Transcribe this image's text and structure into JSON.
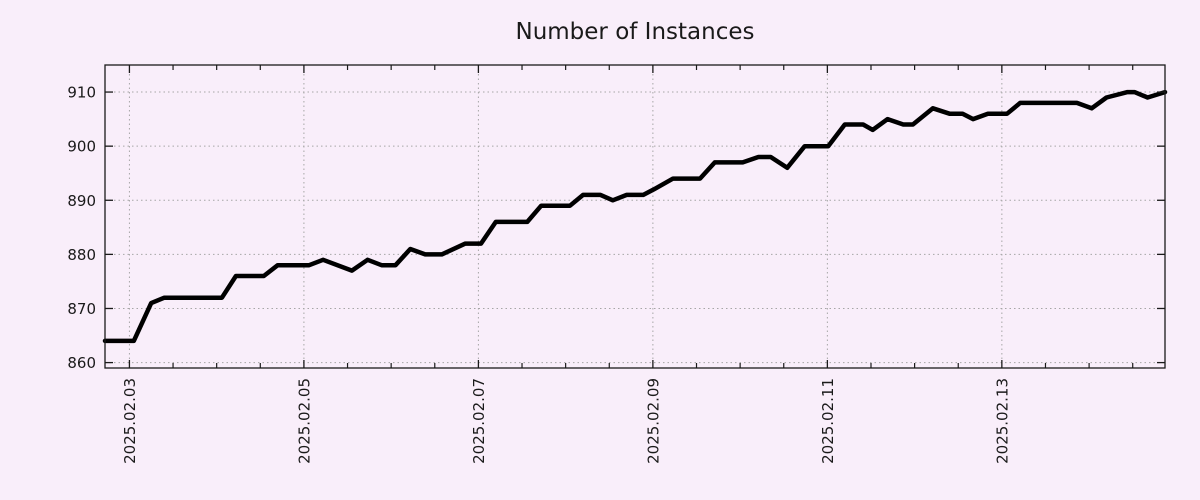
{
  "colors": {
    "background": "#f9eefa",
    "line": "#000000",
    "grid": "#a6a6a6",
    "axis": "#1a1a1a",
    "text": "#1a1a1a"
  },
  "chart_data": {
    "type": "line",
    "title": "Number of Instances",
    "xlabel": "",
    "ylabel": "",
    "grid": true,
    "legend": "none",
    "x_unit": "days since 2025-02-03 00:00",
    "xlim": [
      -0.28,
      11.87
    ],
    "ylim": [
      859,
      915
    ],
    "y_ticks": [
      860,
      870,
      880,
      890,
      900,
      910
    ],
    "x_ticks": [
      {
        "t": 0,
        "label": "2025.02.03"
      },
      {
        "t": 2,
        "label": "2025.02.05"
      },
      {
        "t": 4,
        "label": "2025.02.07"
      },
      {
        "t": 6,
        "label": "2025.02.09"
      },
      {
        "t": 8,
        "label": "2025.02.11"
      },
      {
        "t": 10,
        "label": "2025.02.13"
      }
    ],
    "x_minor_tick_interval": 0.5,
    "series": [
      {
        "name": "instances",
        "color": "#000000",
        "points": [
          [
            -0.28,
            864
          ],
          [
            0.05,
            864
          ],
          [
            0.25,
            871
          ],
          [
            0.4,
            872
          ],
          [
            1.06,
            872
          ],
          [
            1.22,
            876
          ],
          [
            1.54,
            876
          ],
          [
            1.7,
            878
          ],
          [
            2.06,
            878
          ],
          [
            2.22,
            879
          ],
          [
            2.55,
            877
          ],
          [
            2.73,
            879
          ],
          [
            2.89,
            878
          ],
          [
            3.05,
            878
          ],
          [
            3.22,
            881
          ],
          [
            3.39,
            880
          ],
          [
            3.58,
            880
          ],
          [
            3.85,
            882
          ],
          [
            4.03,
            882
          ],
          [
            4.2,
            886
          ],
          [
            4.56,
            886
          ],
          [
            4.72,
            889
          ],
          [
            5.05,
            889
          ],
          [
            5.2,
            891
          ],
          [
            5.4,
            891
          ],
          [
            5.54,
            890
          ],
          [
            5.7,
            891
          ],
          [
            5.89,
            891
          ],
          [
            6.01,
            892
          ],
          [
            6.23,
            894
          ],
          [
            6.54,
            894
          ],
          [
            6.71,
            897
          ],
          [
            7.03,
            897
          ],
          [
            7.21,
            898
          ],
          [
            7.35,
            898
          ],
          [
            7.54,
            896
          ],
          [
            7.74,
            900
          ],
          [
            8.01,
            900
          ],
          [
            8.2,
            904
          ],
          [
            8.41,
            904
          ],
          [
            8.52,
            903
          ],
          [
            8.69,
            905
          ],
          [
            8.87,
            904
          ],
          [
            8.98,
            904
          ],
          [
            9.21,
            907
          ],
          [
            9.4,
            906
          ],
          [
            9.55,
            906
          ],
          [
            9.67,
            905
          ],
          [
            9.84,
            906
          ],
          [
            10.06,
            906
          ],
          [
            10.21,
            908
          ],
          [
            10.86,
            908
          ],
          [
            11.03,
            907
          ],
          [
            11.2,
            909
          ],
          [
            11.44,
            910
          ],
          [
            11.52,
            910
          ],
          [
            11.67,
            909
          ],
          [
            11.87,
            910
          ]
        ]
      }
    ]
  }
}
